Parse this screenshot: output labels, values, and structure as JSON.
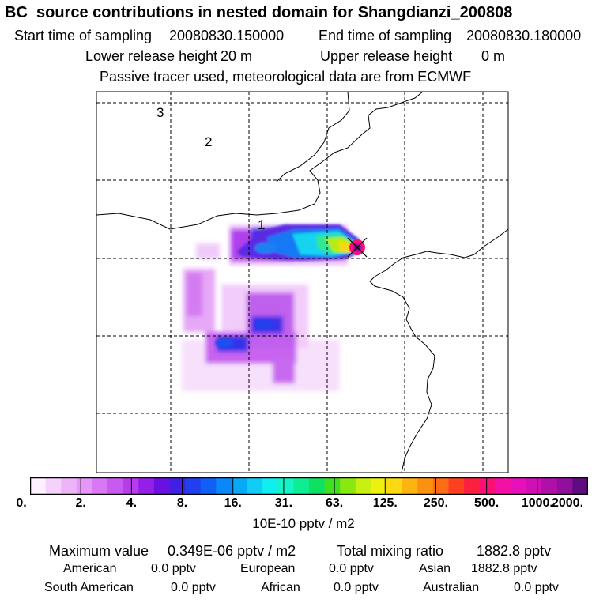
{
  "header": {
    "title": "BC  source contributions in nested domain for Shangdianzi_200808",
    "start_label": "Start time of sampling",
    "start_value": "20080830.150000",
    "end_label": "End time of sampling",
    "end_value": "20080830.180000",
    "lower_label": "Lower release height",
    "lower_value": "20 m",
    "upper_label": "Upper release height",
    "upper_value": "0 m",
    "note": "Passive tracer used, meteorological data are from ECMWF"
  },
  "chart_data": {
    "type": "heatmap",
    "title": "BC  source contributions in nested domain for Shangdianzi_200808",
    "map_region_labels": [
      "1",
      "2",
      "3"
    ],
    "colorbar": {
      "unit": "10E-10 pptv / m2",
      "tick_labels": [
        "0.",
        "2.",
        "4.",
        "8.",
        "16.",
        "31.",
        "63.",
        "125.",
        "250.",
        "500.",
        "1000.",
        "2000."
      ],
      "tick_values": [
        0,
        2,
        4,
        8,
        16,
        31,
        63,
        125,
        250,
        500,
        1000,
        2000
      ],
      "colors": [
        "#fdf0ff",
        "#f5d2fc",
        "#eeb4f8",
        "#e596f6",
        "#d878f2",
        "#c85af0",
        "#b63cec",
        "#9420e8",
        "#6a10e0",
        "#4020e4",
        "#2040f0",
        "#1060f8",
        "#0a88fa",
        "#08aaf8",
        "#10ccf6",
        "#10eef0",
        "#14f4c8",
        "#10ec94",
        "#10e060",
        "#40e020",
        "#88e810",
        "#c8f010",
        "#f0f010",
        "#fcd810",
        "#fcb410",
        "#fc9010",
        "#fc6c14",
        "#fc4020",
        "#fc2040",
        "#fc1078",
        "#f410a4",
        "#e810b8",
        "#d010b4",
        "#b010a8",
        "#90109c",
        "#600c80"
      ]
    },
    "receptor": "Shangdianzi"
  },
  "stats": {
    "max_label": "Maximum value",
    "max_value": "0.349E-06 pptv / m2",
    "total_label": "Total mixing ratio",
    "total_value": "1882.8 pptv",
    "regions": [
      {
        "name": "American",
        "value": "0.0 pptv"
      },
      {
        "name": "European",
        "value": "0.0 pptv"
      },
      {
        "name": "Asian",
        "value": "1882.8 pptv"
      },
      {
        "name": "South American",
        "value": "0.0 pptv"
      },
      {
        "name": "African",
        "value": "0.0 pptv"
      },
      {
        "name": "Australian",
        "value": "0.0 pptv"
      }
    ]
  }
}
